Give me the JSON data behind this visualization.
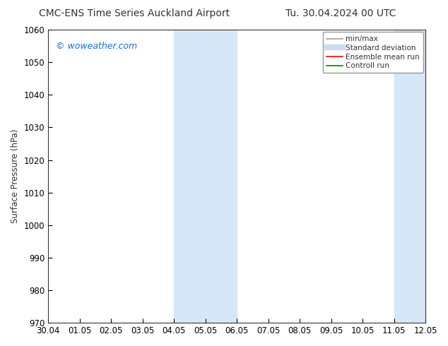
{
  "title_left": "CMC-ENS Time Series Auckland Airport",
  "title_right": "Tu. 30.04.2024 00 UTC",
  "ylabel": "Surface Pressure (hPa)",
  "ylim": [
    970,
    1060
  ],
  "yticks": [
    970,
    980,
    990,
    1000,
    1010,
    1020,
    1030,
    1040,
    1050,
    1060
  ],
  "xtick_labels": [
    "30.04",
    "01.05",
    "02.05",
    "03.05",
    "04.05",
    "05.05",
    "06.05",
    "07.05",
    "08.05",
    "09.05",
    "10.05",
    "11.05",
    "12.05"
  ],
  "xtick_positions": [
    0,
    1,
    2,
    3,
    4,
    5,
    6,
    7,
    8,
    9,
    10,
    11,
    12
  ],
  "shaded_regions": [
    {
      "x_start": 4,
      "x_end": 6,
      "color": "#d6e8f7"
    },
    {
      "x_start": 11,
      "x_end": 12,
      "color": "#d6e8f7"
    }
  ],
  "watermark_text": "© woweather.com",
  "watermark_color": "#1a6fc4",
  "legend_entries": [
    {
      "label": "min/max",
      "color": "#a0a0a0",
      "lw": 1.2,
      "ls": "-"
    },
    {
      "label": "Standard deviation",
      "color": "#c8dff0",
      "lw": 6,
      "ls": "-"
    },
    {
      "label": "Ensemble mean run",
      "color": "red",
      "lw": 1.2,
      "ls": "-"
    },
    {
      "label": "Controll run",
      "color": "green",
      "lw": 1.2,
      "ls": "-"
    }
  ],
  "bg_color": "#ffffff",
  "title_fontsize": 10,
  "tick_fontsize": 8.5,
  "label_fontsize": 8.5,
  "legend_fontsize": 7.5
}
